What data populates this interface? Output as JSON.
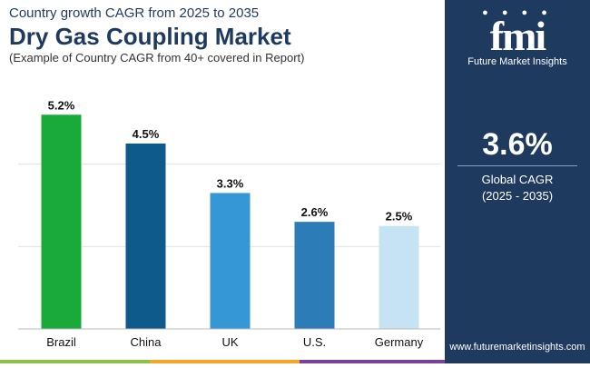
{
  "header": {
    "subtitle": "Country growth CAGR from 2025 to 2035",
    "title": "Dry Gas Coupling Market",
    "note": "(Example of Country CAGR from 40+ covered in Report)"
  },
  "brand": {
    "logo_text": "fmi",
    "name": "Future Market Insights",
    "website": "www.futuremarketinsights.com"
  },
  "global": {
    "value": "3.6%",
    "label": "Global CAGR",
    "period": "(2025 - 2035)"
  },
  "colors": {
    "navy": "#1f3a5f",
    "brazil": "#1aaa3a",
    "china": "#0e5a8a",
    "uk": "#3597d6",
    "us": "#2c7cb8",
    "germany": "#c5e3f3"
  },
  "chart_data": {
    "type": "bar",
    "title": "Dry Gas Coupling Market",
    "categories": [
      "Brazil",
      "China",
      "UK",
      "U.S.",
      "Germany"
    ],
    "values": [
      5.2,
      4.5,
      3.3,
      2.6,
      2.5
    ],
    "labels": [
      "5.2%",
      "4.5%",
      "3.3%",
      "2.6%",
      "2.5%"
    ],
    "bar_colors": [
      "#1aaa3a",
      "#0e5a8a",
      "#3597d6",
      "#2c7cb8",
      "#c5e3f3"
    ],
    "ylim": [
      0,
      6
    ],
    "grid": true,
    "xlabel": "",
    "ylabel": ""
  }
}
